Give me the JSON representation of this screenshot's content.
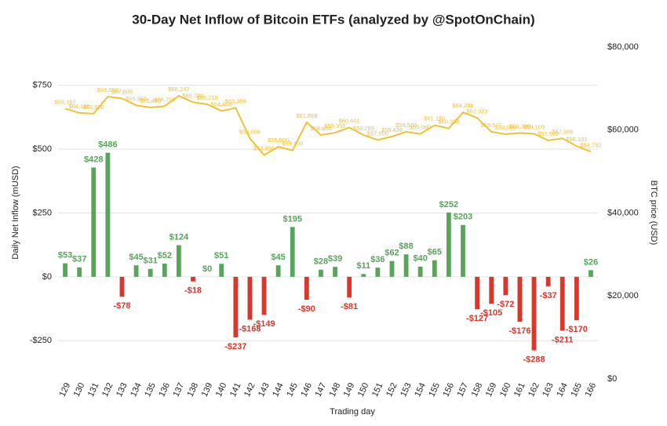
{
  "chart_data": {
    "type": "bar",
    "title": "30-Day Net Inflow of Bitcoin ETFs (analyzed by @SpotOnChain)",
    "x_label": "Trading day",
    "y_label": "Daily Net Inflow (mUSD)",
    "y2_label": "BTC price (USD)",
    "categories": [
      129,
      130,
      131,
      132,
      133,
      134,
      135,
      136,
      137,
      138,
      139,
      140,
      141,
      142,
      143,
      144,
      145,
      146,
      147,
      148,
      149,
      150,
      151,
      152,
      153,
      154,
      155,
      156,
      157,
      158,
      159,
      160,
      161,
      162,
      163,
      164,
      165,
      166
    ],
    "series": [
      {
        "type": "bar",
        "color": "#57a55a",
        "negative_color": "#d9372b",
        "values": [
          53,
          37,
          428,
          486,
          -78,
          45,
          31,
          52,
          124,
          -18,
          0,
          51,
          -237,
          -168,
          -149,
          45,
          195,
          -90,
          28,
          39,
          -81,
          11,
          36,
          62,
          88,
          40,
          65,
          252,
          203,
          -127,
          -105,
          -72,
          -176,
          -288,
          -37,
          -211,
          -170,
          26
        ],
        "value_labels": [
          "$53",
          "$37",
          "$428",
          "$486",
          "-$78",
          "$45",
          "$31",
          "$52",
          "$124",
          "-$18",
          "$0",
          "$51",
          "-$237",
          "-$168",
          "-$149",
          "$45",
          "$195",
          "-$90",
          "$28",
          "$39",
          "-$81",
          "$11",
          "$36",
          "$62",
          "$88",
          "$40",
          "$65",
          "$252",
          "$203",
          "-$127",
          "-$105",
          "-$72",
          "-$176",
          "-$288",
          "-$37",
          "-$211",
          "-$170",
          "$26"
        ]
      },
      {
        "type": "line",
        "axis": "y2",
        "color": "#efc13a",
        "values": [
          65167,
          64130,
          63960,
          68050,
          67608,
          65950,
          65450,
          65750,
          68242,
          66700,
          66219,
          64600,
          65358,
          58006,
          53956,
          55960,
          55100,
          61859,
          58800,
          59350,
          60601,
          58799,
          57600,
          58438,
          59570,
          59060,
          61150,
          60388,
          64266,
          62923,
          59577,
          59000,
          59300,
          59109,
          57500,
          57988,
          56132,
          54792
        ],
        "value_labels": [
          "$65,167",
          "$64,130",
          "$63,960",
          "$68,050",
          "$67,608",
          "$65,950",
          "$65,450",
          "$65,750",
          "$68,242",
          "$66,700",
          "$66,219",
          "$64,600",
          "$65,358",
          "$58,006",
          "$53,956",
          "$55,960",
          "$55,100",
          "$61,859",
          "$58,800",
          "$59,350",
          "$60,601",
          "$58,799",
          "$57,600",
          "$58,438",
          "$59,570",
          "$59,060",
          "$61,150",
          "$60,388",
          "$64,266",
          "$62,923",
          "$59,577",
          "$59,000",
          "$59,300",
          "$59,109",
          "$57,500",
          "$57,988",
          "$56,132",
          "$54,792"
        ]
      }
    ],
    "ylim": [
      -400,
      900
    ],
    "yticks": [
      {
        "value": -250,
        "label": "-$250"
      },
      {
        "value": 0,
        "label": "$0"
      },
      {
        "value": 250,
        "label": "$250"
      },
      {
        "value": 500,
        "label": "$500"
      },
      {
        "value": 750,
        "label": "$750"
      }
    ],
    "y2lim": [
      0,
      80000
    ],
    "y2ticks": [
      {
        "value": 0,
        "label": "$0"
      },
      {
        "value": 20000,
        "label": "$20,000"
      },
      {
        "value": 40000,
        "label": "$40,000"
      },
      {
        "value": 60000,
        "label": "$60,000"
      },
      {
        "value": 80000,
        "label": "$80,000"
      }
    ],
    "grid": true
  }
}
